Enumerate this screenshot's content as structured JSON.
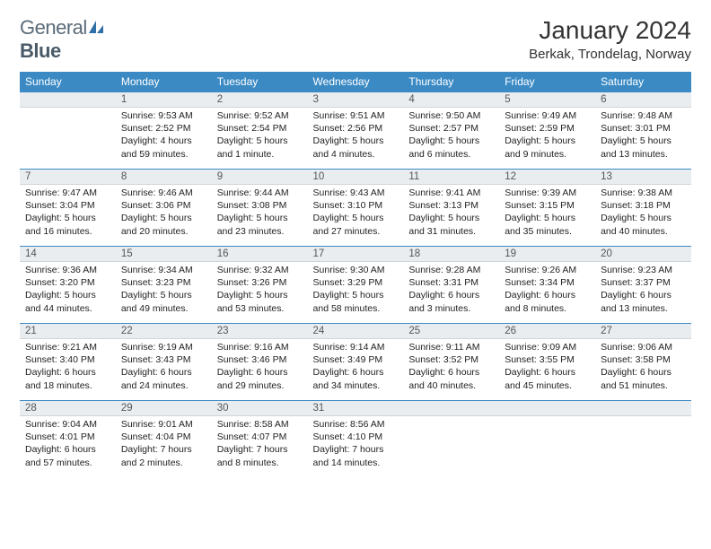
{
  "logo": {
    "text1": "General",
    "text2": "Blue"
  },
  "title": "January 2024",
  "location": "Berkak, Trondelag, Norway",
  "headerColor": "#3b8ac4",
  "dayBarColor": "#e9edf0",
  "weekdays": [
    "Sunday",
    "Monday",
    "Tuesday",
    "Wednesday",
    "Thursday",
    "Friday",
    "Saturday"
  ],
  "weeks": [
    [
      {
        "n": "",
        "l": [
          "",
          "",
          ""
        ]
      },
      {
        "n": "1",
        "l": [
          "Sunrise: 9:53 AM",
          "Sunset: 2:52 PM",
          "Daylight: 4 hours and 59 minutes."
        ]
      },
      {
        "n": "2",
        "l": [
          "Sunrise: 9:52 AM",
          "Sunset: 2:54 PM",
          "Daylight: 5 hours and 1 minute."
        ]
      },
      {
        "n": "3",
        "l": [
          "Sunrise: 9:51 AM",
          "Sunset: 2:56 PM",
          "Daylight: 5 hours and 4 minutes."
        ]
      },
      {
        "n": "4",
        "l": [
          "Sunrise: 9:50 AM",
          "Sunset: 2:57 PM",
          "Daylight: 5 hours and 6 minutes."
        ]
      },
      {
        "n": "5",
        "l": [
          "Sunrise: 9:49 AM",
          "Sunset: 2:59 PM",
          "Daylight: 5 hours and 9 minutes."
        ]
      },
      {
        "n": "6",
        "l": [
          "Sunrise: 9:48 AM",
          "Sunset: 3:01 PM",
          "Daylight: 5 hours and 13 minutes."
        ]
      }
    ],
    [
      {
        "n": "7",
        "l": [
          "Sunrise: 9:47 AM",
          "Sunset: 3:04 PM",
          "Daylight: 5 hours and 16 minutes."
        ]
      },
      {
        "n": "8",
        "l": [
          "Sunrise: 9:46 AM",
          "Sunset: 3:06 PM",
          "Daylight: 5 hours and 20 minutes."
        ]
      },
      {
        "n": "9",
        "l": [
          "Sunrise: 9:44 AM",
          "Sunset: 3:08 PM",
          "Daylight: 5 hours and 23 minutes."
        ]
      },
      {
        "n": "10",
        "l": [
          "Sunrise: 9:43 AM",
          "Sunset: 3:10 PM",
          "Daylight: 5 hours and 27 minutes."
        ]
      },
      {
        "n": "11",
        "l": [
          "Sunrise: 9:41 AM",
          "Sunset: 3:13 PM",
          "Daylight: 5 hours and 31 minutes."
        ]
      },
      {
        "n": "12",
        "l": [
          "Sunrise: 9:39 AM",
          "Sunset: 3:15 PM",
          "Daylight: 5 hours and 35 minutes."
        ]
      },
      {
        "n": "13",
        "l": [
          "Sunrise: 9:38 AM",
          "Sunset: 3:18 PM",
          "Daylight: 5 hours and 40 minutes."
        ]
      }
    ],
    [
      {
        "n": "14",
        "l": [
          "Sunrise: 9:36 AM",
          "Sunset: 3:20 PM",
          "Daylight: 5 hours and 44 minutes."
        ]
      },
      {
        "n": "15",
        "l": [
          "Sunrise: 9:34 AM",
          "Sunset: 3:23 PM",
          "Daylight: 5 hours and 49 minutes."
        ]
      },
      {
        "n": "16",
        "l": [
          "Sunrise: 9:32 AM",
          "Sunset: 3:26 PM",
          "Daylight: 5 hours and 53 minutes."
        ]
      },
      {
        "n": "17",
        "l": [
          "Sunrise: 9:30 AM",
          "Sunset: 3:29 PM",
          "Daylight: 5 hours and 58 minutes."
        ]
      },
      {
        "n": "18",
        "l": [
          "Sunrise: 9:28 AM",
          "Sunset: 3:31 PM",
          "Daylight: 6 hours and 3 minutes."
        ]
      },
      {
        "n": "19",
        "l": [
          "Sunrise: 9:26 AM",
          "Sunset: 3:34 PM",
          "Daylight: 6 hours and 8 minutes."
        ]
      },
      {
        "n": "20",
        "l": [
          "Sunrise: 9:23 AM",
          "Sunset: 3:37 PM",
          "Daylight: 6 hours and 13 minutes."
        ]
      }
    ],
    [
      {
        "n": "21",
        "l": [
          "Sunrise: 9:21 AM",
          "Sunset: 3:40 PM",
          "Daylight: 6 hours and 18 minutes."
        ]
      },
      {
        "n": "22",
        "l": [
          "Sunrise: 9:19 AM",
          "Sunset: 3:43 PM",
          "Daylight: 6 hours and 24 minutes."
        ]
      },
      {
        "n": "23",
        "l": [
          "Sunrise: 9:16 AM",
          "Sunset: 3:46 PM",
          "Daylight: 6 hours and 29 minutes."
        ]
      },
      {
        "n": "24",
        "l": [
          "Sunrise: 9:14 AM",
          "Sunset: 3:49 PM",
          "Daylight: 6 hours and 34 minutes."
        ]
      },
      {
        "n": "25",
        "l": [
          "Sunrise: 9:11 AM",
          "Sunset: 3:52 PM",
          "Daylight: 6 hours and 40 minutes."
        ]
      },
      {
        "n": "26",
        "l": [
          "Sunrise: 9:09 AM",
          "Sunset: 3:55 PM",
          "Daylight: 6 hours and 45 minutes."
        ]
      },
      {
        "n": "27",
        "l": [
          "Sunrise: 9:06 AM",
          "Sunset: 3:58 PM",
          "Daylight: 6 hours and 51 minutes."
        ]
      }
    ],
    [
      {
        "n": "28",
        "l": [
          "Sunrise: 9:04 AM",
          "Sunset: 4:01 PM",
          "Daylight: 6 hours and 57 minutes."
        ]
      },
      {
        "n": "29",
        "l": [
          "Sunrise: 9:01 AM",
          "Sunset: 4:04 PM",
          "Daylight: 7 hours and 2 minutes."
        ]
      },
      {
        "n": "30",
        "l": [
          "Sunrise: 8:58 AM",
          "Sunset: 4:07 PM",
          "Daylight: 7 hours and 8 minutes."
        ]
      },
      {
        "n": "31",
        "l": [
          "Sunrise: 8:56 AM",
          "Sunset: 4:10 PM",
          "Daylight: 7 hours and 14 minutes."
        ]
      },
      {
        "n": "",
        "l": [
          "",
          "",
          ""
        ]
      },
      {
        "n": "",
        "l": [
          "",
          "",
          ""
        ]
      },
      {
        "n": "",
        "l": [
          "",
          "",
          ""
        ]
      }
    ]
  ]
}
